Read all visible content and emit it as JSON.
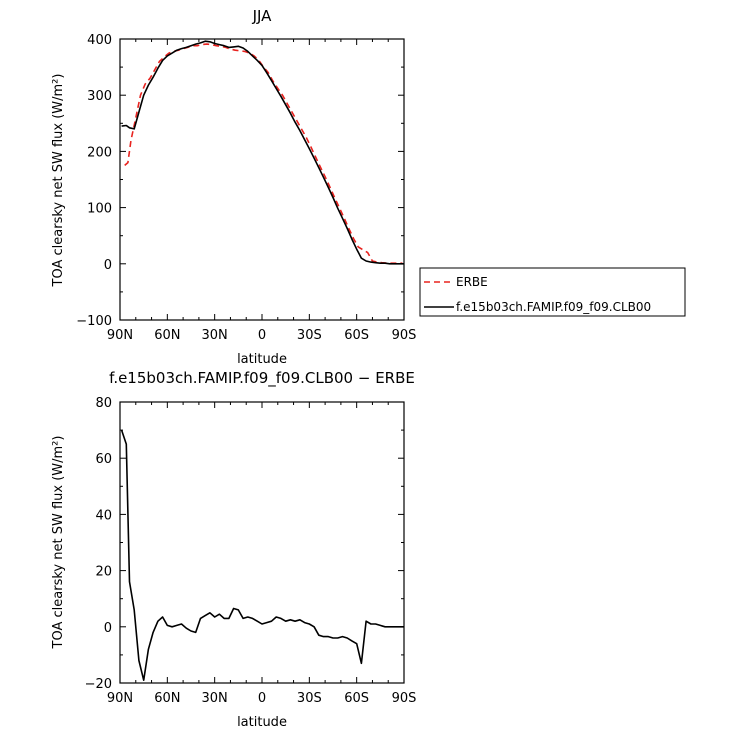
{
  "chart_data": [
    {
      "type": "line",
      "title": "JJA",
      "xlabel": "latitude",
      "ylabel": "TOA clearsky net SW flux (W/m²)",
      "xlim": [
        90,
        -90
      ],
      "ylim": [
        -100,
        400
      ],
      "xticks": [
        {
          "v": 90,
          "label": "90N"
        },
        {
          "v": 60,
          "label": "60N"
        },
        {
          "v": 30,
          "label": "30N"
        },
        {
          "v": 0,
          "label": "0"
        },
        {
          "v": -30,
          "label": "30S"
        },
        {
          "v": -60,
          "label": "60S"
        },
        {
          "v": -90,
          "label": "90S"
        }
      ],
      "yticks": [
        -100,
        0,
        100,
        200,
        300,
        400
      ],
      "legend_position": "right",
      "series": [
        {
          "name": "ERBE",
          "color": "#e8231f",
          "dash": "dashed",
          "x": [
            87,
            85,
            83,
            80,
            77,
            74,
            71,
            68,
            65,
            62,
            59,
            56,
            53,
            50,
            47,
            44,
            41,
            38,
            35,
            32,
            29,
            26,
            23,
            20,
            17,
            14,
            11,
            8,
            5,
            2,
            -1,
            -4,
            -7,
            -10,
            -13,
            -16,
            -19,
            -22,
            -25,
            -28,
            -31,
            -34,
            -37,
            -40,
            -43,
            -46,
            -49,
            -52,
            -55,
            -58,
            -61,
            -64,
            -67,
            -70,
            -73,
            -76,
            -80,
            -83,
            -86,
            -89
          ],
          "y": [
            175,
            180,
            220,
            260,
            300,
            320,
            330,
            345,
            360,
            368,
            375,
            378,
            380,
            383,
            385,
            388,
            388,
            390,
            391,
            390,
            388,
            387,
            385,
            382,
            380,
            379,
            378,
            375,
            370,
            362,
            350,
            340,
            325,
            312,
            300,
            285,
            270,
            255,
            240,
            225,
            208,
            190,
            172,
            155,
            137,
            118,
            100,
            82,
            63,
            45,
            30,
            25,
            20,
            5,
            3,
            2,
            1,
            1,
            1,
            1
          ]
        },
        {
          "name": "f.e15b03ch.FAMIP.f09_f09.CLB00",
          "color": "#000000",
          "dash": "solid",
          "x": [
            89,
            86,
            84,
            81,
            78,
            75,
            72,
            69,
            66,
            63,
            60,
            57,
            54,
            51,
            48,
            45,
            42,
            39,
            36,
            33,
            30,
            27,
            24,
            21,
            18,
            15,
            12,
            9,
            6,
            3,
            0,
            -3,
            -6,
            -9,
            -12,
            -15,
            -18,
            -21,
            -24,
            -27,
            -30,
            -33,
            -36,
            -39,
            -42,
            -45,
            -48,
            -51,
            -54,
            -57,
            -60,
            -63,
            -66,
            -69,
            -72,
            -75,
            -78,
            -81,
            -84,
            -87,
            -90
          ],
          "y": [
            245,
            246,
            242,
            240,
            270,
            300,
            318,
            332,
            348,
            362,
            370,
            375,
            380,
            383,
            385,
            388,
            391,
            393,
            396,
            395,
            392,
            390,
            388,
            385,
            386,
            387,
            384,
            378,
            370,
            362,
            353,
            340,
            326,
            312,
            298,
            283,
            268,
            252,
            237,
            221,
            205,
            188,
            171,
            154,
            136,
            118,
            99,
            81,
            63,
            44,
            26,
            10,
            5,
            3,
            2,
            1,
            1,
            0,
            0,
            0,
            0
          ]
        }
      ]
    },
    {
      "type": "line",
      "title": "f.e15b03ch.FAMIP.f09_f09.CLB00 − ERBE",
      "xlabel": "latitude",
      "ylabel": "TOA clearsky net SW flux (W/m²)",
      "xlim": [
        90,
        -90
      ],
      "ylim": [
        -20,
        80
      ],
      "xticks": [
        {
          "v": 90,
          "label": "90N"
        },
        {
          "v": 60,
          "label": "60N"
        },
        {
          "v": 30,
          "label": "30N"
        },
        {
          "v": 0,
          "label": "0"
        },
        {
          "v": -30,
          "label": "30S"
        },
        {
          "v": -60,
          "label": "60S"
        },
        {
          "v": -90,
          "label": "90S"
        }
      ],
      "yticks": [
        -20,
        0,
        20,
        40,
        60,
        80
      ],
      "series": [
        {
          "color": "#000000",
          "dash": "solid",
          "x": [
            89,
            86,
            84,
            81,
            78,
            75,
            72,
            69,
            66,
            63,
            60,
            57,
            54,
            51,
            48,
            45,
            42,
            39,
            36,
            33,
            30,
            27,
            24,
            21,
            18,
            15,
            12,
            9,
            6,
            3,
            0,
            -3,
            -6,
            -9,
            -12,
            -15,
            -18,
            -21,
            -24,
            -27,
            -30,
            -33,
            -36,
            -39,
            -42,
            -45,
            -48,
            -51,
            -54,
            -57,
            -60,
            -63,
            -66,
            -69,
            -72,
            -75,
            -78,
            -81,
            -84,
            -87,
            -90
          ],
          "y": [
            70,
            65,
            16,
            6,
            -12,
            -19,
            -8,
            -2,
            2,
            3.5,
            0.5,
            0,
            0.5,
            1,
            -0.5,
            -1.5,
            -2,
            3,
            4,
            5,
            3.5,
            4.5,
            3,
            3,
            6.5,
            6,
            3,
            3.5,
            3,
            2,
            1,
            1.5,
            2,
            3.5,
            3,
            2,
            2.5,
            2,
            2.5,
            1.5,
            1,
            0,
            -3,
            -3.5,
            -3.5,
            -4,
            -4,
            -3.5,
            -4,
            -5,
            -6,
            -13,
            2,
            1,
            1,
            0.5,
            0,
            0,
            0,
            0,
            0
          ]
        }
      ]
    }
  ]
}
